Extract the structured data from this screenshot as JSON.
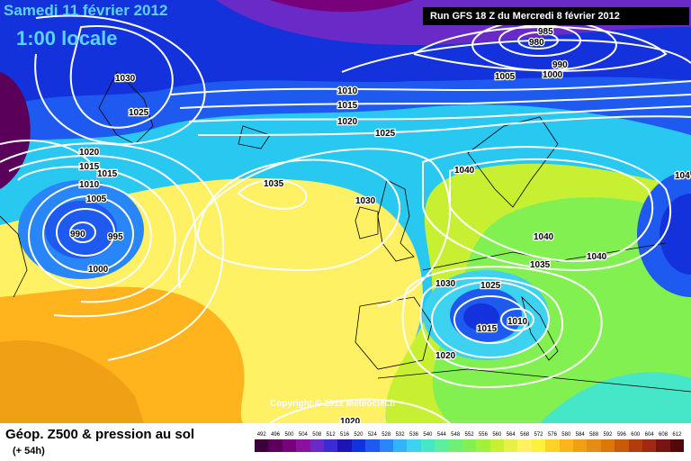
{
  "header": {
    "date": "Samedi 11 février 2012",
    "time": "1:00 locale",
    "run": "Run GFS 18 Z du Mercredi 8 février 2012"
  },
  "copyright": "Copyright © 2011 Meteociel.fr",
  "footer": {
    "title": "Géop. Z500 & pression au sol",
    "subtitle": "(+ 54h)"
  },
  "colors": {
    "deep_purple": "#5a005a",
    "navy": "#0a14b4",
    "blue": "#1e50f0",
    "cyan": "#28c8f0",
    "aqua": "#46e6c8",
    "green": "#78e646",
    "lime": "#b4f032",
    "yellow": "#fff064",
    "orange": "#f0a014",
    "isobar": "#ffffff"
  },
  "scale": {
    "labels": [
      "492",
      "496",
      "500",
      "504",
      "508",
      "512",
      "516",
      "520",
      "524",
      "528",
      "532",
      "536",
      "540",
      "544",
      "548",
      "552",
      "556",
      "560",
      "564",
      "568",
      "572",
      "576",
      "580",
      "584",
      "588",
      "592",
      "596",
      "600",
      "604",
      "608",
      "612"
    ],
    "colors": [
      "#3c003c",
      "#5a005a",
      "#78007a",
      "#8c10a0",
      "#6a2ac8",
      "#3c2ad2",
      "#1e14b4",
      "#1432dc",
      "#1e5af0",
      "#2886f8",
      "#32b4f8",
      "#3cd2f0",
      "#46e6c8",
      "#5af0a0",
      "#6ef078",
      "#82f050",
      "#a0f03c",
      "#c8f032",
      "#e6f046",
      "#fff064",
      "#fff03c",
      "#ffd228",
      "#ffb41e",
      "#f0a014",
      "#e68c14",
      "#dc780a",
      "#c85a0a",
      "#b43c0a",
      "#a02814",
      "#781414",
      "#500a0a"
    ]
  },
  "pressure_labels": [
    "1030",
    "1025",
    "1020",
    "1015",
    "1015",
    "1010",
    "1005",
    "990",
    "995",
    "1000",
    "1035",
    "1030",
    "1010",
    "1015",
    "1020",
    "1025",
    "985",
    "980",
    "990",
    "1005",
    "1000",
    "1040",
    "1040",
    "1035",
    "1040",
    "104",
    "1030",
    "1025",
    "1010",
    "1015",
    "1020",
    "1020"
  ]
}
